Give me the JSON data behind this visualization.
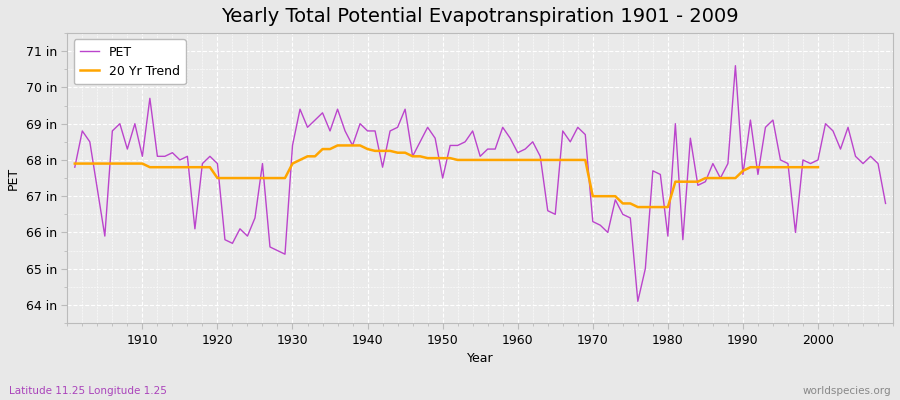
{
  "title": "Yearly Total Potential Evapotranspiration 1901 - 2009",
  "xlabel": "Year",
  "ylabel": "PET",
  "subtitle_left": "Latitude 11.25 Longitude 1.25",
  "subtitle_right": "worldspecies.org",
  "years": [
    1901,
    1902,
    1903,
    1904,
    1905,
    1906,
    1907,
    1908,
    1909,
    1910,
    1911,
    1912,
    1913,
    1914,
    1915,
    1916,
    1917,
    1918,
    1919,
    1920,
    1921,
    1922,
    1923,
    1924,
    1925,
    1926,
    1927,
    1928,
    1929,
    1930,
    1931,
    1932,
    1933,
    1934,
    1935,
    1936,
    1937,
    1938,
    1939,
    1940,
    1941,
    1942,
    1943,
    1944,
    1945,
    1946,
    1947,
    1948,
    1949,
    1950,
    1951,
    1952,
    1953,
    1954,
    1955,
    1956,
    1957,
    1958,
    1959,
    1960,
    1961,
    1962,
    1963,
    1964,
    1965,
    1966,
    1967,
    1968,
    1969,
    1970,
    1971,
    1972,
    1973,
    1974,
    1975,
    1976,
    1977,
    1978,
    1979,
    1980,
    1981,
    1982,
    1983,
    1984,
    1985,
    1986,
    1987,
    1988,
    1989,
    1990,
    1991,
    1992,
    1993,
    1994,
    1995,
    1996,
    1997,
    1998,
    1999,
    2000,
    2001,
    2002,
    2003,
    2004,
    2005,
    2006,
    2007,
    2008,
    2009
  ],
  "pet": [
    67.8,
    68.8,
    68.5,
    67.2,
    65.9,
    68.8,
    69.0,
    68.3,
    69.0,
    68.1,
    69.7,
    68.1,
    68.1,
    68.2,
    68.0,
    68.1,
    66.1,
    67.9,
    68.1,
    67.9,
    65.8,
    65.7,
    66.1,
    65.9,
    66.4,
    67.9,
    65.6,
    65.5,
    65.4,
    68.4,
    69.4,
    68.9,
    69.1,
    69.3,
    68.8,
    69.4,
    68.8,
    68.4,
    69.0,
    68.8,
    68.8,
    67.8,
    68.8,
    68.9,
    69.4,
    68.1,
    68.5,
    68.9,
    68.6,
    67.5,
    68.4,
    68.4,
    68.5,
    68.8,
    68.1,
    68.3,
    68.3,
    68.9,
    68.6,
    68.2,
    68.3,
    68.5,
    68.1,
    66.6,
    66.5,
    68.8,
    68.5,
    68.9,
    68.7,
    66.3,
    66.2,
    66.0,
    66.9,
    66.5,
    66.4,
    64.1,
    65.0,
    67.7,
    67.6,
    65.9,
    69.0,
    65.8,
    68.6,
    67.3,
    67.4,
    67.9,
    67.5,
    67.9,
    70.6,
    67.6,
    69.1,
    67.6,
    68.9,
    69.1,
    68.0,
    67.9,
    66.0,
    68.0,
    67.9,
    68.0,
    69.0,
    68.8,
    68.3,
    68.9,
    68.1,
    67.9,
    68.1,
    67.9,
    66.8
  ],
  "trend": [
    67.9,
    67.9,
    67.9,
    67.9,
    67.9,
    67.9,
    67.9,
    67.9,
    67.9,
    67.9,
    67.8,
    67.8,
    67.8,
    67.8,
    67.8,
    67.8,
    67.8,
    67.8,
    67.8,
    67.5,
    67.5,
    67.5,
    67.5,
    67.5,
    67.5,
    67.5,
    67.5,
    67.5,
    67.5,
    67.9,
    68.0,
    68.1,
    68.1,
    68.3,
    68.3,
    68.4,
    68.4,
    68.4,
    68.4,
    68.3,
    68.25,
    68.25,
    68.25,
    68.2,
    68.2,
    68.1,
    68.1,
    68.05,
    68.05,
    68.05,
    68.05,
    68.0,
    68.0,
    68.0,
    68.0,
    68.0,
    68.0,
    68.0,
    68.0,
    68.0,
    68.0,
    68.0,
    68.0,
    68.0,
    68.0,
    68.0,
    68.0,
    68.0,
    68.0,
    67.0,
    67.0,
    67.0,
    67.0,
    66.8,
    66.8,
    66.7,
    66.7,
    66.7,
    66.7,
    66.7,
    67.4,
    67.4,
    67.4,
    67.4,
    67.5,
    67.5,
    67.5,
    67.5,
    67.5,
    67.7,
    67.8,
    67.8,
    67.8,
    67.8,
    67.8,
    67.8,
    67.8,
    67.8,
    67.8,
    67.8,
    null,
    null,
    null,
    null,
    null,
    null,
    null,
    null,
    null
  ],
  "pet_color": "#BB44CC",
  "trend_color": "#FFA500",
  "bg_color": "#E8E8E8",
  "plot_bg_color": "#EAEAEA",
  "grid_color": "#FFFFFF",
  "ylim": [
    63.5,
    71.5
  ],
  "yticks": [
    64,
    65,
    66,
    67,
    68,
    69,
    70,
    71
  ],
  "ytick_labels": [
    "64 in",
    "65 in",
    "66 in",
    "67 in",
    "68 in",
    "69 in",
    "70 in",
    "71 in"
  ],
  "xlim": [
    1900,
    2010
  ],
  "xticks": [
    1910,
    1920,
    1930,
    1940,
    1950,
    1960,
    1970,
    1980,
    1990,
    2000
  ],
  "title_fontsize": 14,
  "axis_fontsize": 9,
  "legend_fontsize": 9
}
